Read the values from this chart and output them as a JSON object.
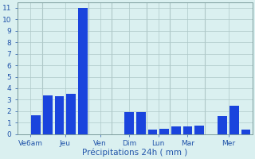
{
  "bars": [
    {
      "value": 0,
      "group": "Ve6am"
    },
    {
      "value": 1.65,
      "group": "Ve6am"
    },
    {
      "value": 3.4,
      "group": "Jeu"
    },
    {
      "value": 3.3,
      "group": "Jeu"
    },
    {
      "value": 3.5,
      "group": "Jeu"
    },
    {
      "value": 11.0,
      "group": "Jeu"
    },
    {
      "value": 0,
      "group": "Ven"
    },
    {
      "value": 0,
      "group": "Ven"
    },
    {
      "value": 0,
      "group": "Dim"
    },
    {
      "value": 1.9,
      "group": "Dim"
    },
    {
      "value": 1.9,
      "group": "Dim"
    },
    {
      "value": 0.4,
      "group": "Lun"
    },
    {
      "value": 0.45,
      "group": "Lun"
    },
    {
      "value": 0.65,
      "group": "Mar"
    },
    {
      "value": 0.7,
      "group": "Mar"
    },
    {
      "value": 0.75,
      "group": "Mar"
    },
    {
      "value": 0,
      "group": "Mer"
    },
    {
      "value": 1.6,
      "group": "Mer"
    },
    {
      "value": 2.5,
      "group": "Mer"
    },
    {
      "value": 0.4,
      "group": "Mer"
    }
  ],
  "tick_labels": [
    "Ve6am",
    "Jeu",
    "Ven",
    "Dim",
    "Lun",
    "Mar",
    "Mer"
  ],
  "bar_color": "#1a44dd",
  "background_color": "#daf0f0",
  "grid_color": "#aec8c8",
  "xlabel": "Précipitations 24h ( mm )",
  "ylim": [
    0,
    11.5
  ],
  "yticks": [
    0,
    1,
    2,
    3,
    4,
    5,
    6,
    7,
    8,
    9,
    10,
    11
  ],
  "xlabel_fontsize": 7.5,
  "tick_fontsize": 6.5,
  "figsize": [
    3.2,
    2.0
  ],
  "dpi": 100
}
